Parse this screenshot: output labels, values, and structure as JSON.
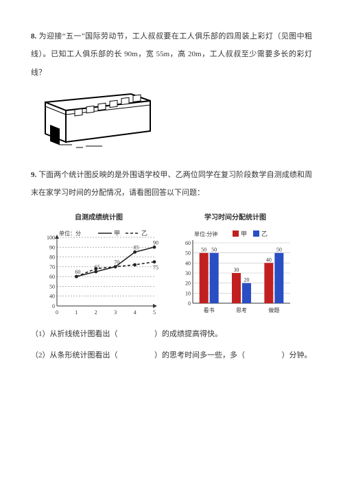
{
  "q8": {
    "num": "8.",
    "text": "为迎接“五一”国际劳动节，工人叔叔要在工人俱乐部的四周装上彩灯（见图中粗线）。已知工人俱乐部的长 90m，宽 55m，高 20m，工人叔叔至少需要多长的彩灯线？"
  },
  "q9": {
    "num": "9.",
    "intro": "下面两个统计图反映的是外围语学校甲、乙两位同学在复习阶段数学自测成绩和周末在家学习时间的分配情况，请看图回答以下问题：",
    "sub1_a": "（1）从折线统计图看出（",
    "sub1_b": "）的成绩提高得快。",
    "sub2_a": "（2）从条形统计图看出（",
    "sub2_b": "）的思考时间多一些，多（",
    "sub2_c": "）分钟。"
  },
  "linechart": {
    "title": "自测成绩统计图",
    "unit_label": "单位：分",
    "legend_a": "甲",
    "legend_b": "乙",
    "ylim": [
      0,
      100
    ],
    "yticks": [
      0,
      40,
      50,
      60,
      70,
      80,
      90,
      100
    ],
    "xticks": [
      0,
      1,
      2,
      3,
      4,
      5
    ],
    "series_a": [
      {
        "x": 1,
        "y": 60
      },
      {
        "x": 2,
        "y": 65
      },
      {
        "x": 3,
        "y": 70
      },
      {
        "x": 4,
        "y": 85
      },
      {
        "x": 5,
        "y": 90
      }
    ],
    "series_b": [
      {
        "x": 1,
        "y": 60
      },
      {
        "x": 2,
        "y": 68
      },
      {
        "x": 3,
        "y": 70
      },
      {
        "x": 4,
        "y": 72
      },
      {
        "x": 5,
        "y": 75
      }
    ],
    "value_labels_a": [
      60,
      65,
      70,
      85,
      90
    ],
    "value_labels_b": [
      75
    ],
    "axis_color": "#333333",
    "grid_color": "#666666",
    "line_color": "#222222"
  },
  "barchart": {
    "title": "学习时间分配统计图",
    "unit_label": "单位:分钟",
    "legend_a": "甲",
    "legend_b": "乙",
    "color_a": "#c22020",
    "color_b": "#2a4fc4",
    "ylim": [
      0,
      60
    ],
    "yticks": [
      0,
      10,
      20,
      30,
      40,
      50,
      60
    ],
    "categories": [
      "看书",
      "思考",
      "做题"
    ],
    "values_a": [
      50,
      30,
      40
    ],
    "values_b": [
      50,
      20,
      50
    ],
    "axis_color": "#333333",
    "grid_color": "#bfbfbf"
  }
}
